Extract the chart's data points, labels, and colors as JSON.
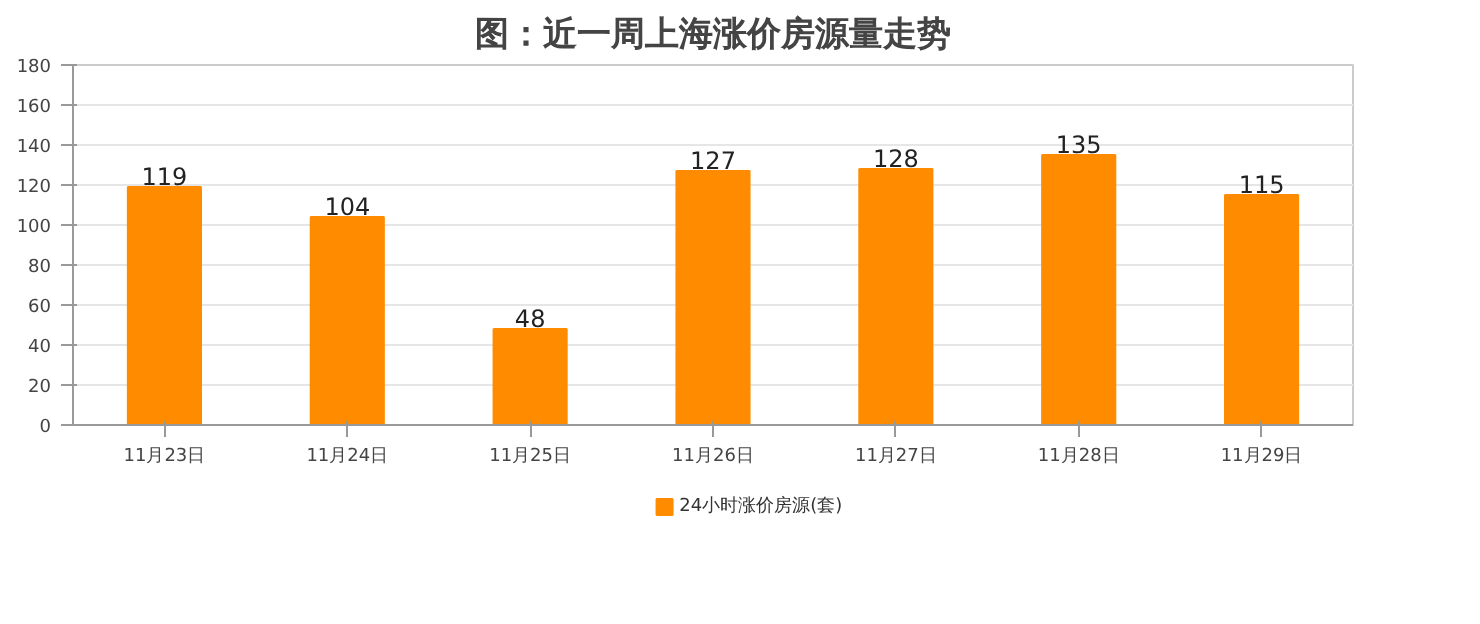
{
  "chart_data": {
    "type": "bar",
    "title": "图：近一周上海涨价房源量走势",
    "categories": [
      "11月23日",
      "11月24日",
      "11月25日",
      "11月26日",
      "11月27日",
      "11月28日",
      "11月29日"
    ],
    "series": [
      {
        "name": "24小时涨价房源(套)",
        "color": "#ff8c00",
        "values": [
          119,
          104,
          48,
          127,
          128,
          135,
          115
        ]
      }
    ],
    "ylim": [
      0,
      180
    ],
    "yticks": [
      0,
      20,
      40,
      60,
      80,
      100,
      120,
      140,
      160,
      180
    ],
    "grid": "y",
    "legend": "bottom",
    "data_labels": true
  }
}
